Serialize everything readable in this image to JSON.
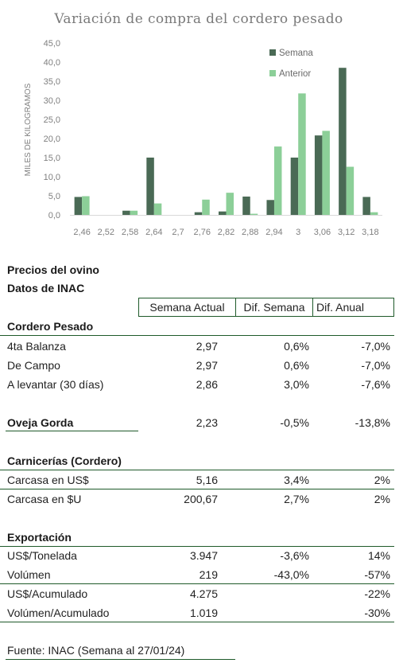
{
  "chart_data": {
    "type": "bar",
    "title": "Variación de compra del cordero pesado",
    "ylabel": "MILES DE KILOGRAMOS",
    "xlabel": "",
    "categories": [
      "2,46",
      "2,52",
      "2,58",
      "2,64",
      "2,7",
      "2,76",
      "2,82",
      "2,88",
      "2,94",
      "3",
      "3,06",
      "3,12",
      "3,18"
    ],
    "series": [
      {
        "name": "Semana",
        "color": "#4a6a55",
        "values": [
          4.7,
          0,
          1.1,
          15.0,
          0,
          0.7,
          0.9,
          4.8,
          3.9,
          15.0,
          20.8,
          38.5,
          4.7
        ]
      },
      {
        "name": "Anterior",
        "color": "#8ccf98",
        "values": [
          4.9,
          0,
          1.1,
          3.0,
          0,
          4.0,
          5.8,
          0.3,
          17.9,
          31.8,
          22.0,
          12.6,
          0.7
        ]
      }
    ],
    "ylim": [
      0,
      45
    ],
    "yticks": [
      "0,0",
      "5,0",
      "10,0",
      "15,0",
      "20,0",
      "25,0",
      "30,0",
      "35,0",
      "40,0",
      "45,0"
    ],
    "grid": false,
    "legend": "top-right"
  },
  "table": {
    "title1": "Precios del ovino",
    "title2": "Datos de INAC",
    "headers": [
      "Semana Actual",
      "Dif. Semana",
      "Dif. Anual"
    ],
    "sections": [
      {
        "label": "Cordero Pesado",
        "rows": [
          {
            "label": "4ta Balanza",
            "values": [
              "2,97",
              "0,6%",
              "-7,0%"
            ]
          },
          {
            "label": "De Campo",
            "values": [
              "2,97",
              "0,6%",
              "-7,0%"
            ]
          },
          {
            "label": "A levantar (30 días)",
            "values": [
              "2,86",
              "3,0%",
              "-7,6%"
            ]
          }
        ]
      },
      {
        "label": "Oveja Gorda",
        "values": [
          "2,23",
          "-0,5%",
          "-13,8%"
        ]
      },
      {
        "label": "Carnicerías (Cordero)",
        "rows": [
          {
            "label": "Carcasa en US$",
            "values": [
              "5,16",
              "3,4%",
              "2%"
            ]
          },
          {
            "label": "Carcasa en $U",
            "values": [
              "200,67",
              "2,7%",
              "2%"
            ]
          }
        ]
      },
      {
        "label": "Exportación",
        "rows": [
          {
            "label": "US$/Tonelada",
            "values": [
              "3.947",
              "-3,6%",
              "14%"
            ]
          },
          {
            "label": "Volúmen",
            "values": [
              "219",
              "-43,0%",
              "-57%"
            ]
          },
          {
            "label": "US$/Acumulado",
            "values": [
              "4.275",
              "",
              "-22%"
            ]
          },
          {
            "label": "Volúmen/Acumulado",
            "values": [
              "1.019",
              "",
              "-30%"
            ]
          }
        ]
      }
    ],
    "source": "Fuente: INAC (Semana al 27/01/24)"
  }
}
